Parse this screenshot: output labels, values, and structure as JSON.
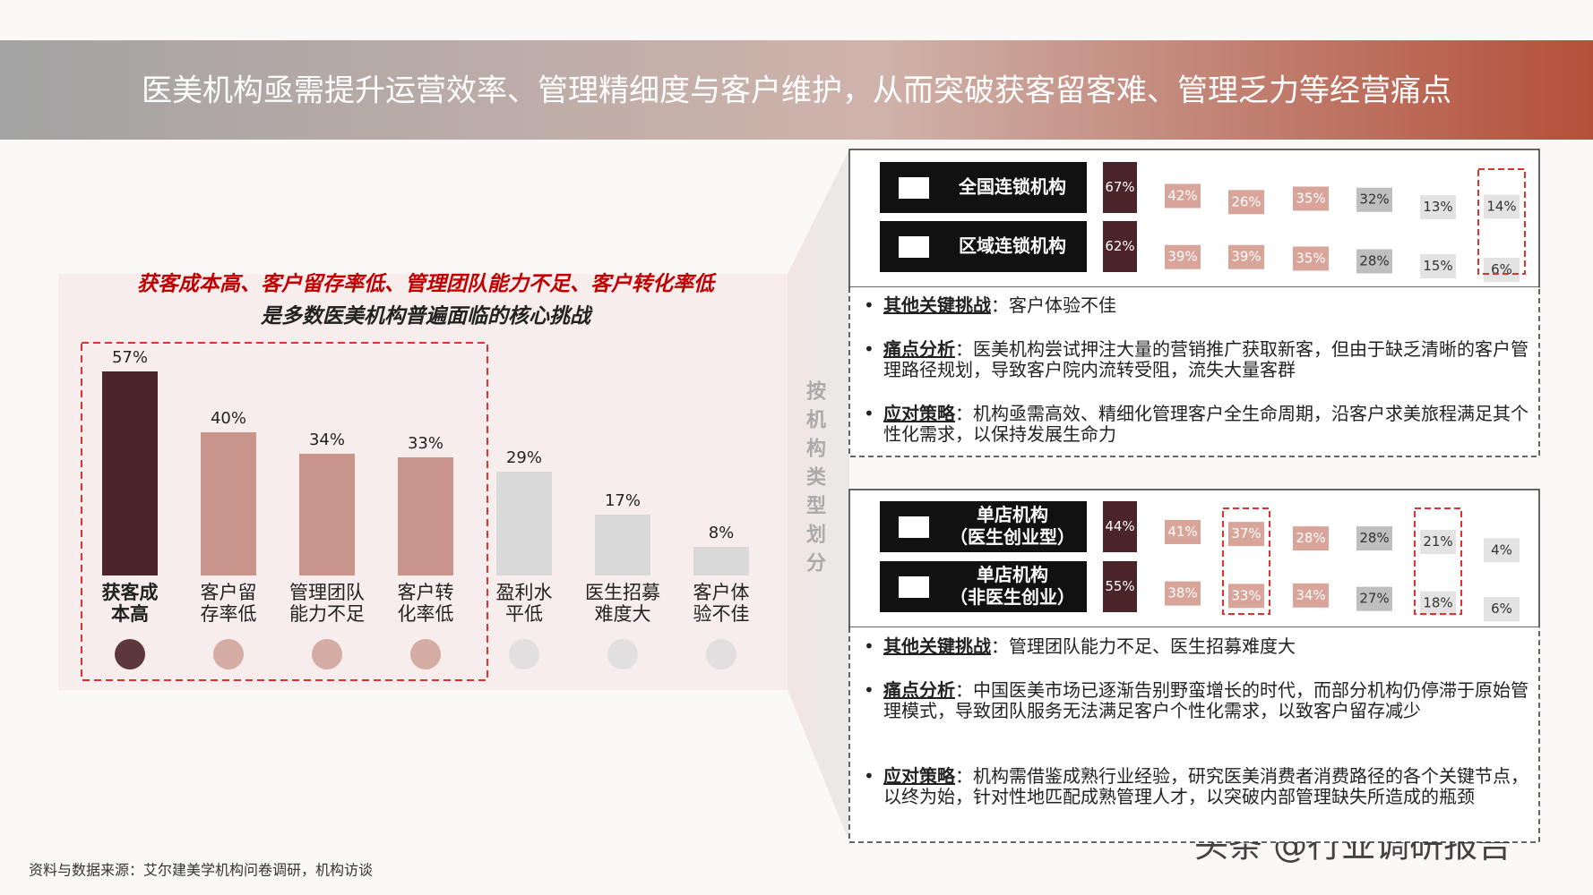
{
  "title": "医美机构亟需提升运营效率、管理精细度与客户维护，从而突破获客留客难、管理乏力等经营痛点",
  "chart_data": {
    "type": "bar",
    "title": "获客成本高、客户留存率低、管理团队能力不足、客户转化率低",
    "subtitle": "是多数医美机构普遍面临的核心挑战",
    "categories": [
      [
        "获客成",
        "本高"
      ],
      [
        "客户留",
        "存率低"
      ],
      [
        "管理团队",
        "能力不足"
      ],
      [
        "客户转",
        "化率低"
      ],
      [
        "盈利水",
        "平低"
      ],
      [
        "医生招募",
        "难度大"
      ],
      [
        "客户体",
        "验不佳"
      ]
    ],
    "values": [
      57,
      40,
      34,
      33,
      29,
      17,
      8
    ],
    "value_labels": [
      "57%",
      "40%",
      "34%",
      "33%",
      "29%",
      "17%",
      "8%"
    ],
    "colors": [
      "#4a2428",
      "#c9958a",
      "#c9958a",
      "#c9958a",
      "#d9d9d9",
      "#d9d9d9",
      "#d9d9d9"
    ]
  },
  "segment_label": "按机构类型划分",
  "column_colors": [
    "#4a2428",
    "#d9a59a",
    "#d9a59a",
    "#d9a59a",
    "#bfbfbf",
    "#e3e3e3",
    "#e3e3e3"
  ],
  "panels": [
    {
      "rows": [
        {
          "label": [
            "全国连锁机构"
          ],
          "values": [
            67,
            42,
            26,
            35,
            32,
            13,
            14
          ],
          "value_labels": [
            "67%",
            "42%",
            "26%",
            "35%",
            "32%",
            "13%",
            "14%"
          ]
        },
        {
          "label": [
            "区域连锁机构"
          ],
          "values": [
            62,
            39,
            39,
            35,
            28,
            15,
            6
          ],
          "value_labels": [
            "62%",
            "39%",
            "39%",
            "35%",
            "28%",
            "15%",
            "6%"
          ]
        }
      ],
      "highlight_columns": [
        6
      ],
      "bullets": [
        {
          "label": "其他关键挑战",
          "text": "：客户体验不佳"
        },
        {
          "label": "痛点分析",
          "text": "：医美机构尝试押注大量的营销推广获取新客，但由于缺乏清晰的客户管理路径规划，导致客户院内流转受阻，流失大量客群"
        },
        {
          "label": "应对策略",
          "text": "：机构亟需高效、精细化管理客户全生命周期，沿客户求美旅程满足其个性化需求，以保持发展生命力"
        }
      ]
    },
    {
      "rows": [
        {
          "label": [
            "单店机构",
            "（医生创业型）"
          ],
          "values": [
            44,
            41,
            37,
            28,
            28,
            21,
            4
          ],
          "value_labels": [
            "44%",
            "41%",
            "37%",
            "28%",
            "28%",
            "21%",
            "4%"
          ]
        },
        {
          "label": [
            "单店机构",
            "（非医生创业）"
          ],
          "values": [
            55,
            38,
            33,
            34,
            27,
            18,
            6
          ],
          "value_labels": [
            "55%",
            "38%",
            "33%",
            "34%",
            "27%",
            "18%",
            "6%"
          ]
        }
      ],
      "highlight_columns": [
        2,
        5
      ],
      "bullets": [
        {
          "label": "其他关键挑战",
          "text": "：管理团队能力不足、医生招募难度大"
        },
        {
          "label": "痛点分析",
          "text": "：中国医美市场已逐渐告别野蛮增长的时代，而部分机构仍停滞于原始管理模式，导致团队服务无法满足客户个性化需求，以致客户留存减少"
        },
        {
          "label": "应对策略",
          "text": "：机构需借鉴成熟行业经验，研究医美消费者消费路径的各个关键节点，以终为始，针对性地匹配成熟管理人才，以突破内部管理缺失所造成的瓶颈"
        }
      ]
    }
  ],
  "source": "资料与数据来源：艾尔建美学机构问卷调研，机构访谈",
  "watermark": "头条 @行业调研报告"
}
